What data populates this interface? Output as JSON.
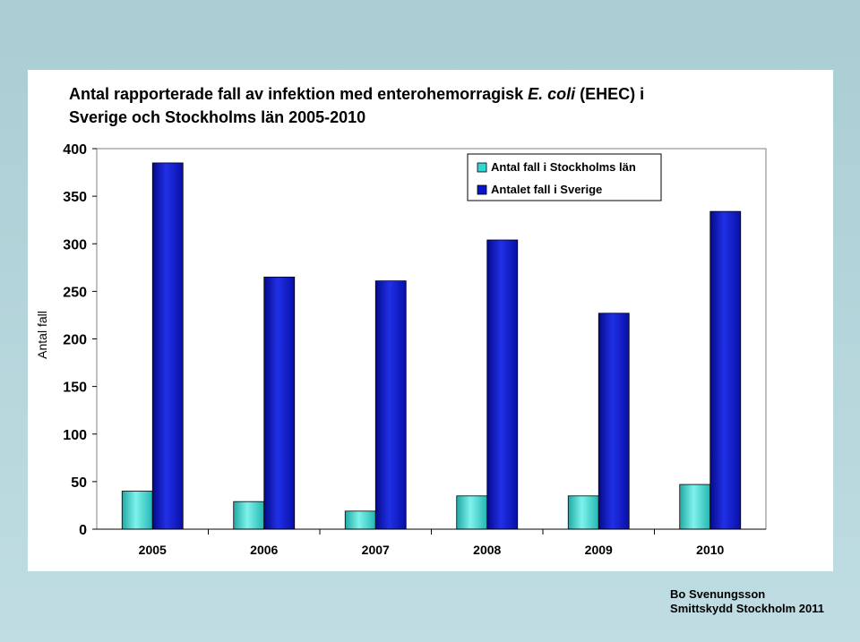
{
  "title": {
    "part1": "Antal rapporterade fall av infektion med enterohemorragisk ",
    "italic": "E. coli",
    "part2": " (EHEC) i",
    "line2": "Sverige och Stockholms län 2005-2010"
  },
  "credit": {
    "line1": "Bo Svenungsson",
    "line2": "Smittskydd Stockholm 2011"
  },
  "colors": {
    "stockholm": "#33d6d0",
    "sverige": "#0a14c8",
    "background": "#b5d6db"
  },
  "chart_data": {
    "type": "bar",
    "title": "Antal rapporterade fall av infektion med enterohemorragisk E. coli (EHEC) i Sverige och Stockholms län 2005-2010",
    "xlabel": "",
    "ylabel": "Antal fall",
    "ylim": [
      0,
      400
    ],
    "yticks": [
      "0",
      "50",
      "100",
      "150",
      "200",
      "250",
      "300",
      "350",
      "400"
    ],
    "categories": [
      "2005",
      "2006",
      "2007",
      "2008",
      "2009",
      "2010"
    ],
    "series": [
      {
        "name": "Antal fall i  Stockholms län",
        "values": [
          40,
          29,
          19,
          35,
          35,
          47
        ]
      },
      {
        "name": "Antalet fall i Sverige",
        "values": [
          385,
          265,
          261,
          304,
          227,
          334
        ]
      }
    ],
    "grid": false,
    "legend": "top-right"
  }
}
